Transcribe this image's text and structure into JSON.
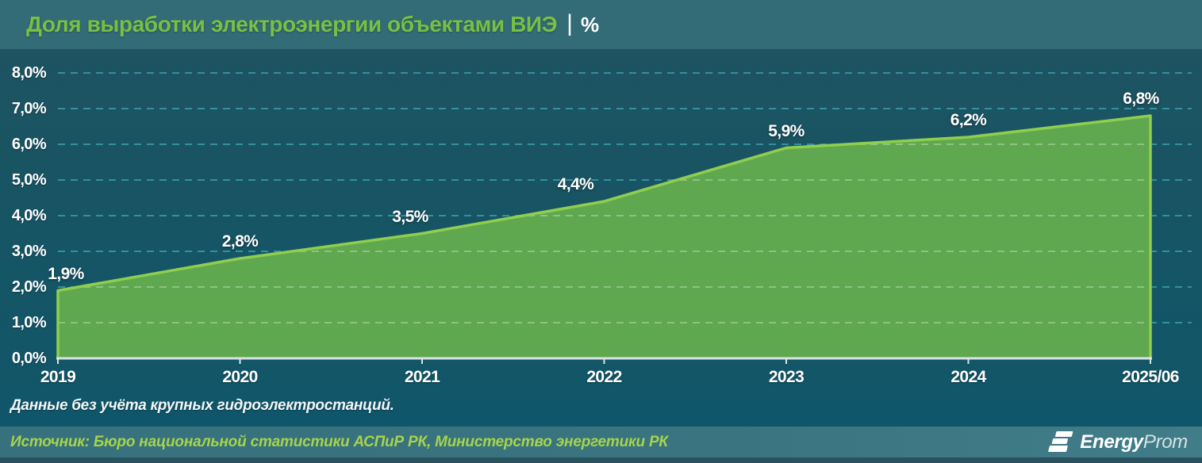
{
  "header": {
    "title": "Доля выработки электроэнергии объектами ВИЭ",
    "separator": "|",
    "unit": "%"
  },
  "chart_data": {
    "type": "area",
    "title": "Доля выработки электроэнергии объектами ВИЭ",
    "unit": "%",
    "categories": [
      "2019",
      "2020",
      "2021",
      "2022",
      "2023",
      "2024",
      "2025/06"
    ],
    "values": [
      1.9,
      2.8,
      3.5,
      4.4,
      5.9,
      6.2,
      6.8
    ],
    "point_labels": [
      "1,9%",
      "2,8%",
      "3,5%",
      "4,4%",
      "5,9%",
      "6,2%",
      "6,8%"
    ],
    "ylim": [
      0,
      8
    ],
    "y_ticks": [
      0,
      1,
      2,
      3,
      4,
      5,
      6,
      7,
      8
    ],
    "y_tick_labels": [
      "0,0%",
      "1,0%",
      "2,0%",
      "3,0%",
      "4,0%",
      "5,0%",
      "6,0%",
      "7,0%",
      "8,0%"
    ],
    "grid": "horizontal-dashed",
    "legend": "none",
    "colors": {
      "area_fill": "#63ac4f",
      "area_line": "#8fce4e",
      "grid": "#31919d",
      "axis": "#d9e4e7",
      "label": "#ffffff",
      "background_top": "#1e5361",
      "background_bottom": "#10566a",
      "header_bg": "#336b77",
      "title_green": "#77c044",
      "source_green": "#a6d44b"
    }
  },
  "note": "Данные без учёта крупных гидроэлектростанций.",
  "footer": {
    "source": "Источник: Бюро национальной статистики АСПиР РК, Министерство энергетики РК",
    "logo_energy": "Energy",
    "logo_prom": "Prom"
  }
}
